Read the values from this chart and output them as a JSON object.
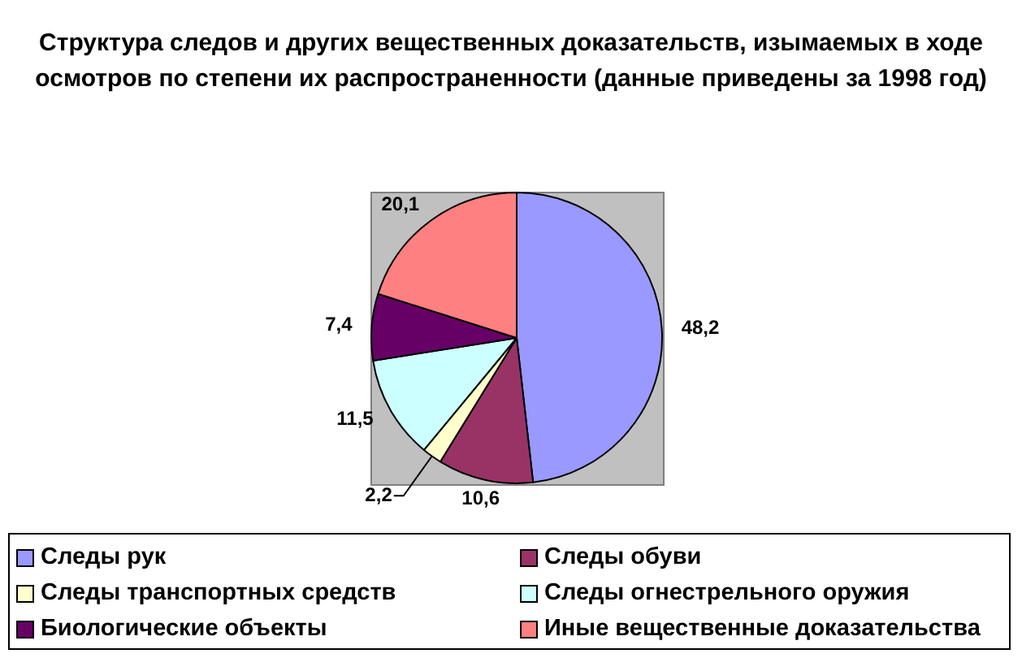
{
  "chart_data": {
    "type": "pie",
    "title": "Структура следов и других вещественных доказательств, изымаемых в ходе осмотров по степени их распространенности (данные приведены за 1998 год)",
    "categories": [
      "Следы рук",
      "Следы обуви",
      "Следы транспортных средств",
      "Следы огнестрельного оружия",
      "Биологические объекты",
      "Иные вещественные доказательства"
    ],
    "values": [
      48.2,
      10.6,
      2.2,
      11.5,
      7.4,
      20.1
    ],
    "value_labels": [
      "48,2",
      "10,6",
      "2,2",
      "11,5",
      "7,4",
      "20,1"
    ],
    "colors": [
      "#9999ff",
      "#993366",
      "#ffffcc",
      "#ccffff",
      "#660066",
      "#ff8080"
    ],
    "legend": "bottom"
  }
}
